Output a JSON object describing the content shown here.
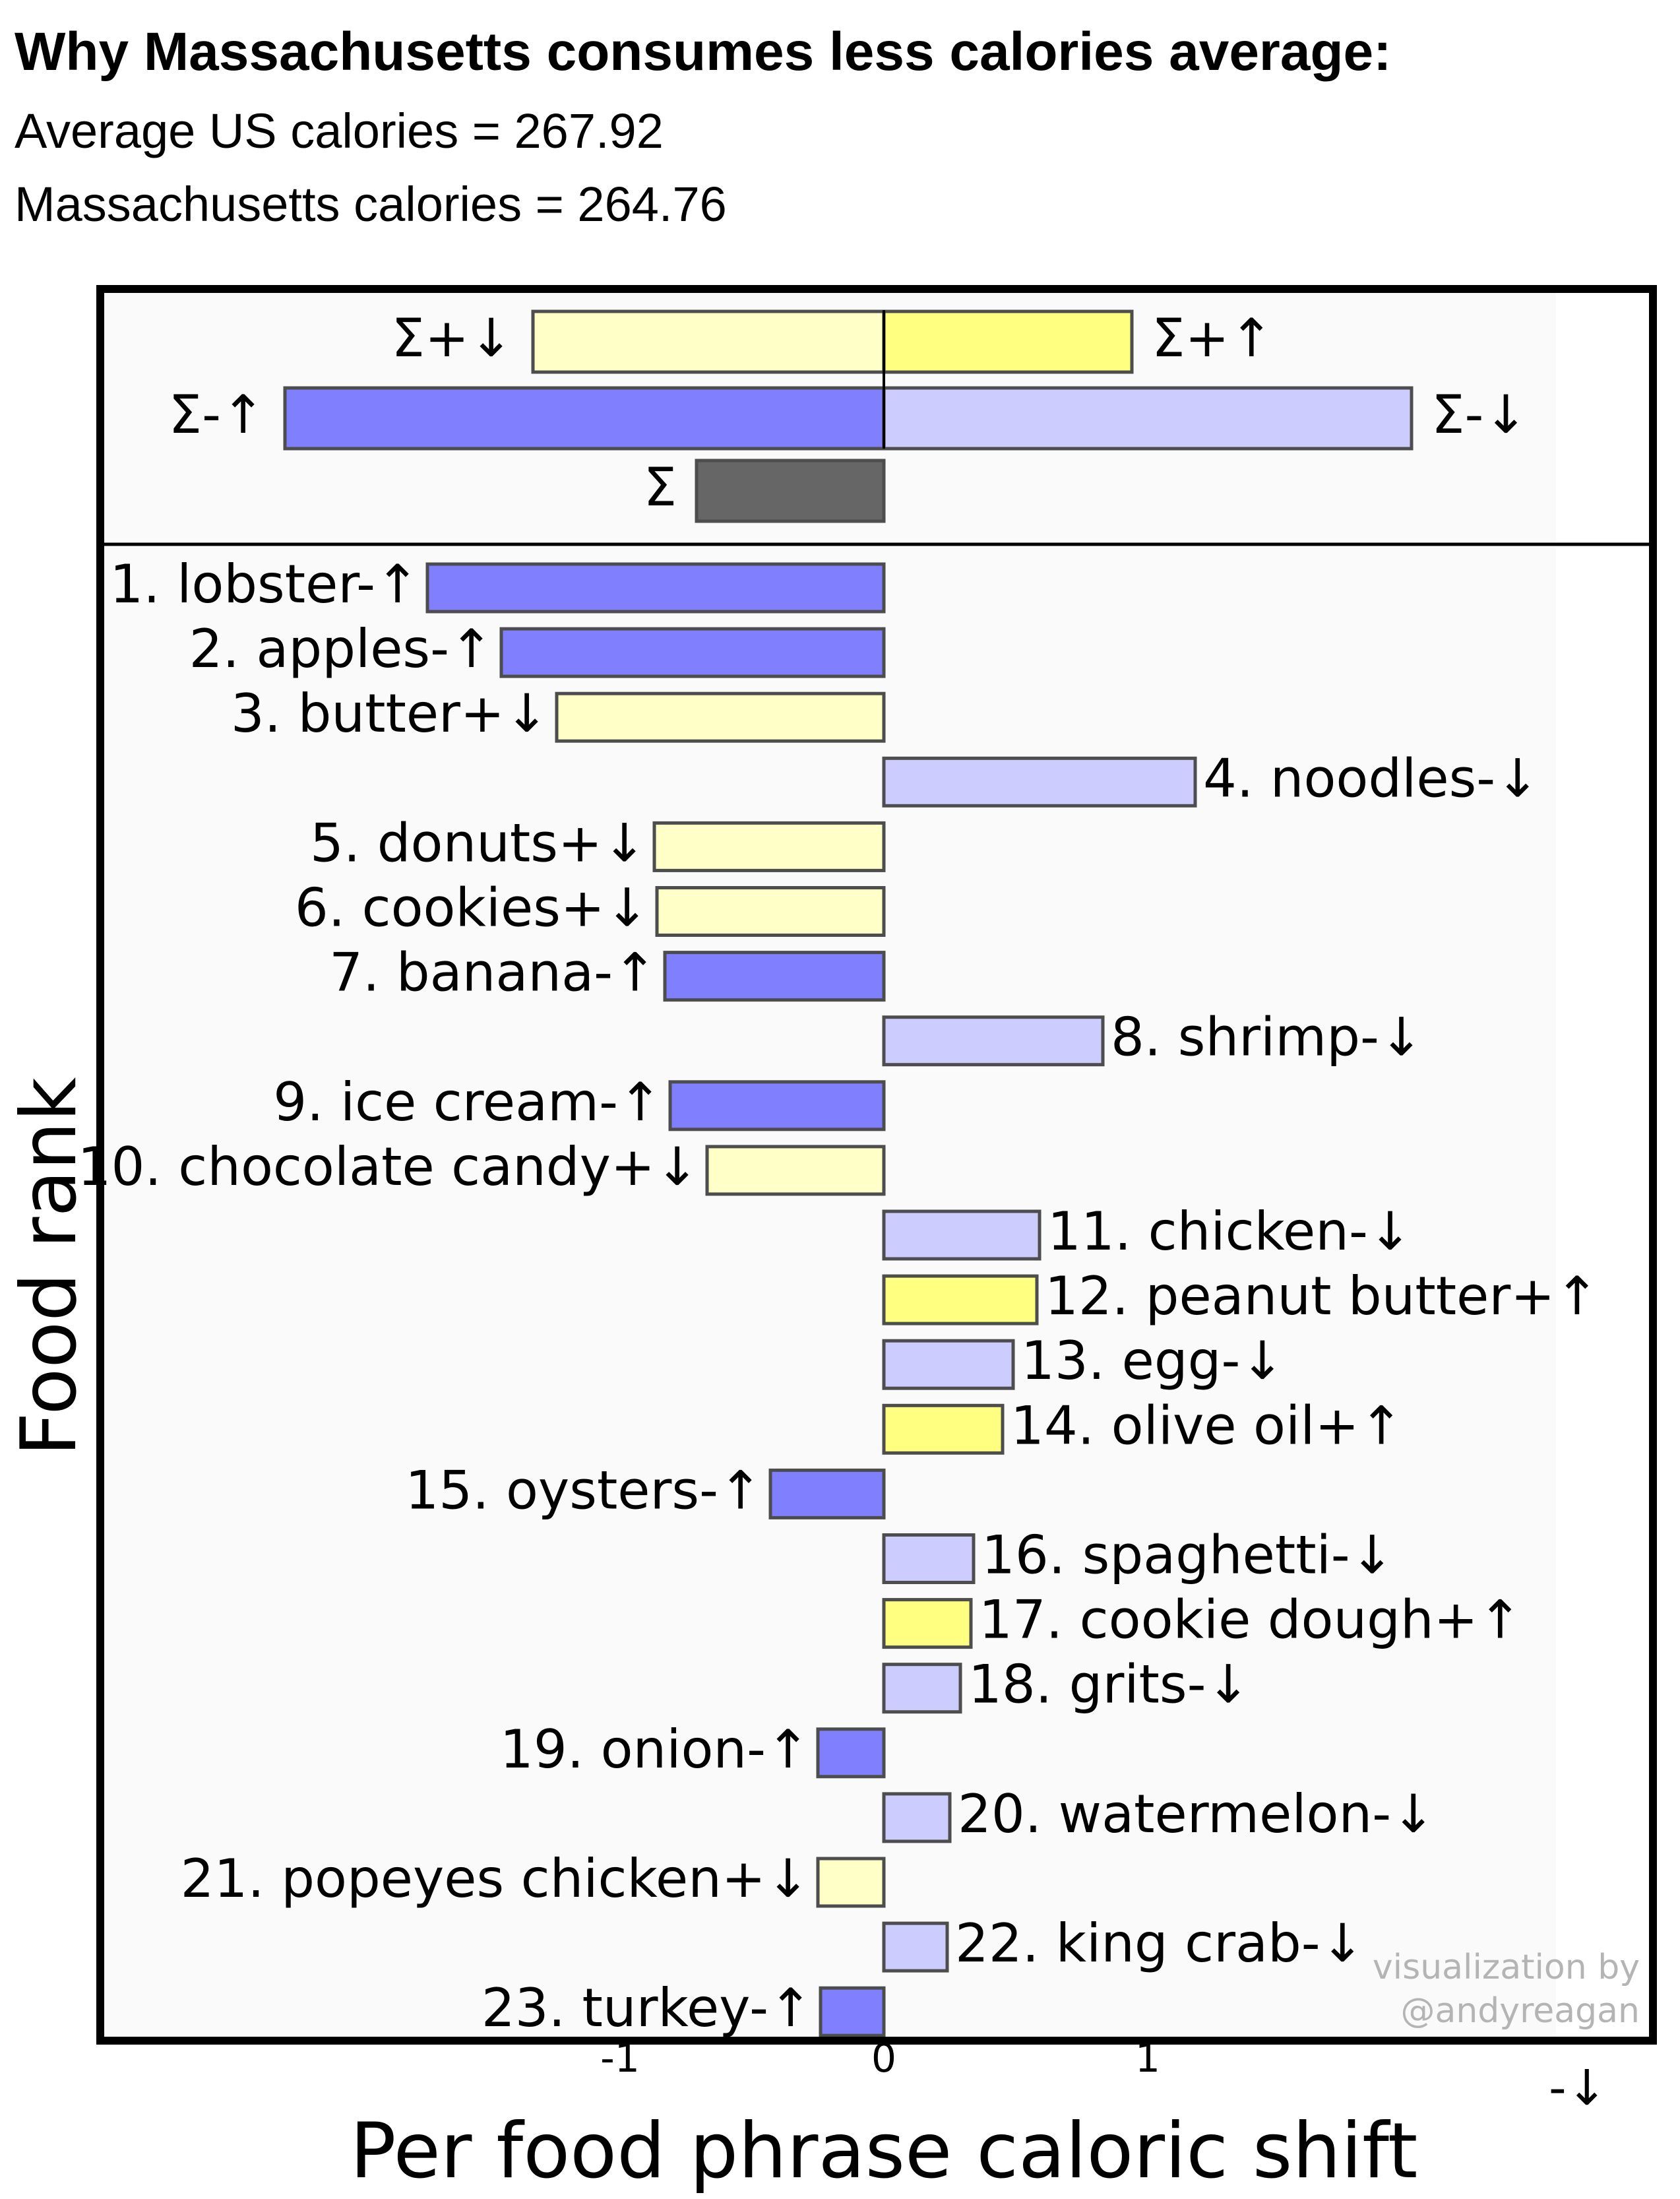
{
  "header": {
    "title": "Why Massachusetts consumes less calories average:",
    "line1": "Average US calories = 267.92",
    "line2": "Massachusetts calories = 264.76"
  },
  "watermark": {
    "line1": "visualization by",
    "line2": "@andyreagan"
  },
  "stray_label": "-↓",
  "colors": {
    "minus_up": "#8080ff",
    "minus_down": "#ccccff",
    "plus_down": "#ffffc8",
    "plus_up": "#ffff80",
    "total": "#666666",
    "outline": "#4d4d4d",
    "panel_bg": "#fafafa"
  },
  "chart_data": {
    "type": "bar",
    "orientation": "horizontal",
    "xlabel": "Per food phrase caloric shift",
    "ylabel": "Food rank",
    "x_ticks": [
      "-1",
      "0",
      "1"
    ],
    "x_tick_values": [
      -1,
      0,
      1
    ],
    "xlim": [
      -2.5,
      4.1
    ],
    "summary": [
      {
        "label": "Σ+↓",
        "value": -1.33,
        "kind": "plus_down"
      },
      {
        "label": "Σ+↑",
        "value": 0.94,
        "kind": "plus_up"
      },
      {
        "label": "Σ-↑",
        "value": -2.27,
        "kind": "minus_up"
      },
      {
        "label": "Σ-↓",
        "value": 2.0,
        "kind": "minus_down"
      },
      {
        "label": "Σ",
        "value": -0.71,
        "kind": "total"
      }
    ],
    "bars": [
      {
        "label": "1. lobster-↑",
        "value": -1.73,
        "kind": "minus_up"
      },
      {
        "label": "2. apples-↑",
        "value": -1.45,
        "kind": "minus_up"
      },
      {
        "label": "3. butter+↓",
        "value": -1.24,
        "kind": "plus_down"
      },
      {
        "label": "4. noodles-↓",
        "value": 1.18,
        "kind": "minus_down"
      },
      {
        "label": "5. donuts+↓",
        "value": -0.87,
        "kind": "plus_down"
      },
      {
        "label": "6. cookies+↓",
        "value": -0.86,
        "kind": "plus_down"
      },
      {
        "label": "7. banana-↑",
        "value": -0.83,
        "kind": "minus_up"
      },
      {
        "label": "8. shrimp-↓",
        "value": 0.83,
        "kind": "minus_down"
      },
      {
        "label": "9. ice cream-↑",
        "value": -0.81,
        "kind": "minus_up"
      },
      {
        "label": "10. chocolate candy+↓",
        "value": -0.67,
        "kind": "plus_down"
      },
      {
        "label": "11. chicken-↓",
        "value": 0.59,
        "kind": "minus_down"
      },
      {
        "label": "12. peanut butter+↑",
        "value": 0.58,
        "kind": "plus_up"
      },
      {
        "label": "13. egg-↓",
        "value": 0.49,
        "kind": "minus_down"
      },
      {
        "label": "14. olive oil+↑",
        "value": 0.45,
        "kind": "plus_up"
      },
      {
        "label": "15. oysters-↑",
        "value": -0.43,
        "kind": "minus_up"
      },
      {
        "label": "16. spaghetti-↓",
        "value": 0.34,
        "kind": "minus_down"
      },
      {
        "label": "17. cookie dough+↑",
        "value": 0.33,
        "kind": "plus_up"
      },
      {
        "label": "18. grits-↓",
        "value": 0.29,
        "kind": "minus_down"
      },
      {
        "label": "19. onion-↑",
        "value": -0.25,
        "kind": "minus_up"
      },
      {
        "label": "20. watermelon-↓",
        "value": 0.25,
        "kind": "minus_down"
      },
      {
        "label": "21. popeyes chicken+↓",
        "value": -0.25,
        "kind": "plus_down"
      },
      {
        "label": "22. king crab-↓",
        "value": 0.24,
        "kind": "minus_down"
      },
      {
        "label": "23. turkey-↑",
        "value": -0.24,
        "kind": "minus_up"
      }
    ]
  }
}
